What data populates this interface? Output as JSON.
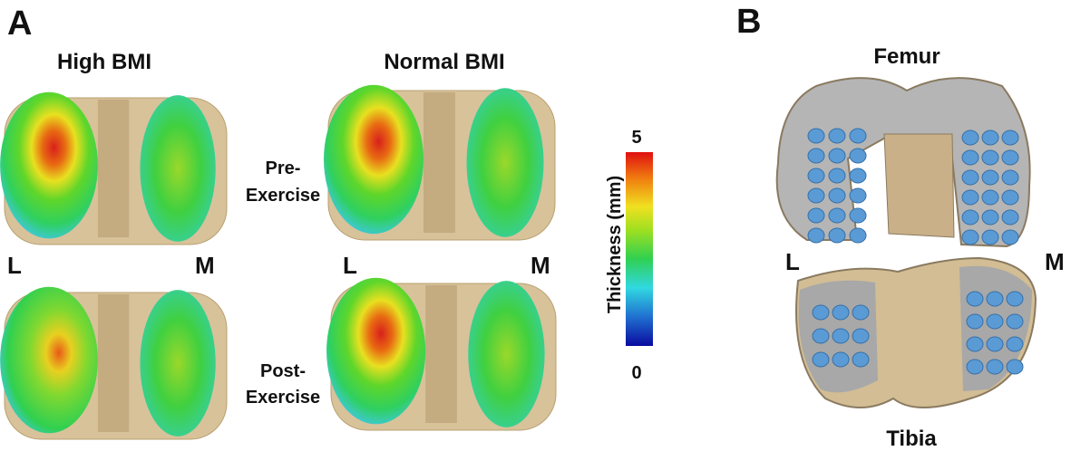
{
  "panel_a": {
    "letter": "A",
    "groups": [
      "High BMI",
      "Normal BMI"
    ],
    "pre_exercise": [
      "Pre-",
      "Exercise"
    ],
    "post_exercise": [
      "Post-",
      "Exercise"
    ],
    "sides": [
      "L",
      "M"
    ],
    "colorbar": {
      "label": "Thickness (mm)",
      "max": 5,
      "min": 0
    }
  },
  "panel_b": {
    "letter": "B",
    "femur": "Femur",
    "tibia": "Tibia",
    "sides": [
      "L",
      "M"
    ]
  }
}
